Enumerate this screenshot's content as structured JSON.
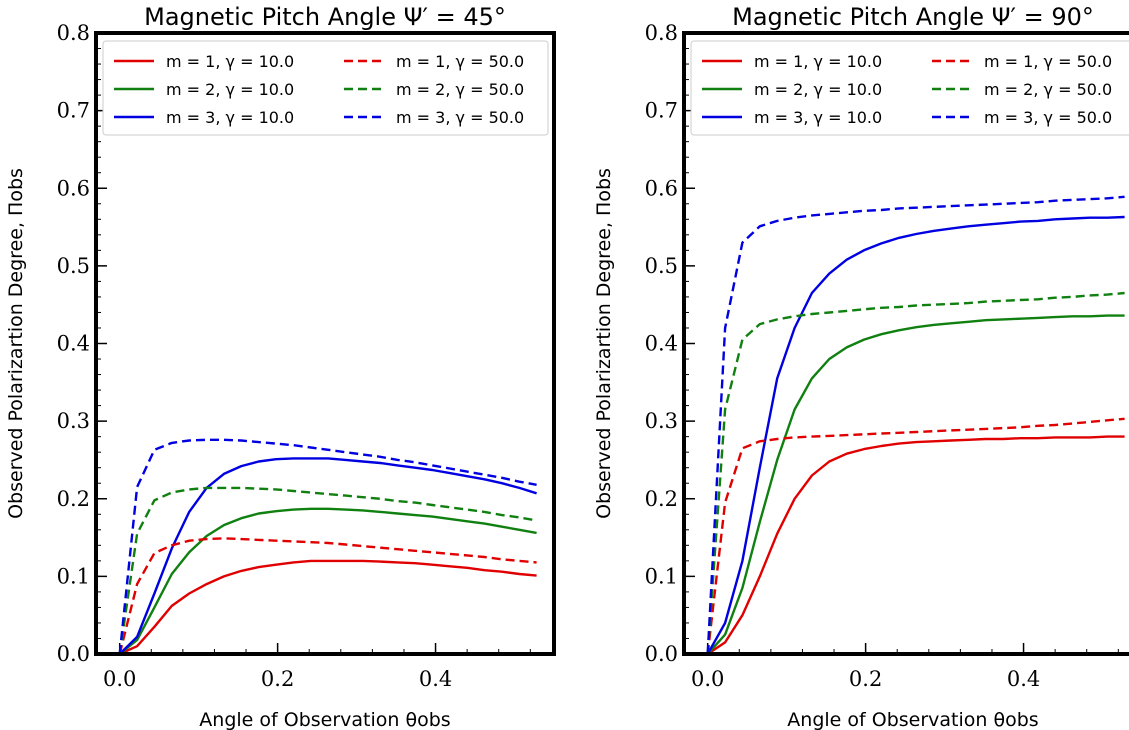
{
  "chart_data": [
    {
      "type": "line",
      "title": "Magnetic Pitch Angle Ψ′ = 45°",
      "xlabel": "Angle of Observation θobs",
      "ylabel": "Observed Polarizartion Degree, Πobs",
      "xlim": [
        -0.03,
        0.55
      ],
      "ylim": [
        0.0,
        0.8
      ],
      "xticks": [
        0.0,
        0.2,
        0.4
      ],
      "xtick_labels": [
        "0.0",
        "0.2",
        "0.4"
      ],
      "yticks": [
        0.0,
        0.1,
        0.2,
        0.3,
        0.4,
        0.5,
        0.6,
        0.7,
        0.8
      ],
      "ytick_labels": [
        "0.0",
        "0.1",
        "0.2",
        "0.3",
        "0.4",
        "0.5",
        "0.6",
        "0.7",
        "0.8"
      ],
      "legend_position": "top",
      "series": [
        {
          "name": "m = 1, γ = 10.0",
          "color": "#e00000",
          "dash": "solid",
          "x": [
            0.0,
            0.022,
            0.044,
            0.066,
            0.088,
            0.11,
            0.132,
            0.154,
            0.176,
            0.198,
            0.22,
            0.242,
            0.264,
            0.286,
            0.308,
            0.33,
            0.352,
            0.374,
            0.396,
            0.418,
            0.44,
            0.462,
            0.484,
            0.506,
            0.528
          ],
          "y": [
            0.0,
            0.01,
            0.035,
            0.062,
            0.078,
            0.09,
            0.1,
            0.107,
            0.112,
            0.115,
            0.118,
            0.12,
            0.12,
            0.12,
            0.12,
            0.119,
            0.118,
            0.117,
            0.115,
            0.113,
            0.111,
            0.108,
            0.106,
            0.103,
            0.101
          ]
        },
        {
          "name": "m = 2, γ = 10.0",
          "color": "#108010",
          "dash": "solid",
          "x": [
            0.0,
            0.022,
            0.044,
            0.066,
            0.088,
            0.11,
            0.132,
            0.154,
            0.176,
            0.198,
            0.22,
            0.242,
            0.264,
            0.286,
            0.308,
            0.33,
            0.352,
            0.374,
            0.396,
            0.418,
            0.44,
            0.462,
            0.484,
            0.506,
            0.528
          ],
          "y": [
            0.0,
            0.018,
            0.06,
            0.103,
            0.131,
            0.152,
            0.166,
            0.175,
            0.181,
            0.184,
            0.186,
            0.187,
            0.187,
            0.186,
            0.185,
            0.183,
            0.181,
            0.179,
            0.177,
            0.174,
            0.171,
            0.168,
            0.164,
            0.16,
            0.156
          ]
        },
        {
          "name": "m = 3, γ = 10.0",
          "color": "#0000e0",
          "dash": "solid",
          "x": [
            0.0,
            0.022,
            0.044,
            0.066,
            0.088,
            0.11,
            0.132,
            0.154,
            0.176,
            0.198,
            0.22,
            0.242,
            0.264,
            0.286,
            0.308,
            0.33,
            0.352,
            0.374,
            0.396,
            0.418,
            0.44,
            0.462,
            0.484,
            0.506,
            0.528
          ],
          "y": [
            0.0,
            0.022,
            0.078,
            0.136,
            0.183,
            0.214,
            0.232,
            0.242,
            0.248,
            0.251,
            0.252,
            0.252,
            0.252,
            0.25,
            0.248,
            0.246,
            0.243,
            0.24,
            0.237,
            0.233,
            0.229,
            0.225,
            0.22,
            0.214,
            0.207
          ]
        },
        {
          "name": "m = 1, γ = 50.0",
          "color": "#e00000",
          "dash": "dashed",
          "x": [
            0.0,
            0.022,
            0.044,
            0.066,
            0.088,
            0.11,
            0.132,
            0.154,
            0.176,
            0.198,
            0.22,
            0.242,
            0.264,
            0.286,
            0.308,
            0.33,
            0.352,
            0.374,
            0.396,
            0.418,
            0.44,
            0.462,
            0.484,
            0.506,
            0.528
          ],
          "y": [
            0.0,
            0.09,
            0.13,
            0.14,
            0.146,
            0.148,
            0.149,
            0.148,
            0.147,
            0.146,
            0.145,
            0.144,
            0.143,
            0.141,
            0.139,
            0.137,
            0.135,
            0.133,
            0.131,
            0.129,
            0.127,
            0.125,
            0.122,
            0.12,
            0.118
          ]
        },
        {
          "name": "m = 2, γ = 50.0",
          "color": "#108010",
          "dash": "dashed",
          "x": [
            0.0,
            0.022,
            0.044,
            0.066,
            0.088,
            0.11,
            0.132,
            0.154,
            0.176,
            0.198,
            0.22,
            0.242,
            0.264,
            0.286,
            0.308,
            0.33,
            0.352,
            0.374,
            0.396,
            0.418,
            0.44,
            0.462,
            0.484,
            0.506,
            0.528
          ],
          "y": [
            0.0,
            0.155,
            0.198,
            0.208,
            0.212,
            0.214,
            0.214,
            0.214,
            0.213,
            0.212,
            0.21,
            0.208,
            0.206,
            0.204,
            0.202,
            0.2,
            0.197,
            0.195,
            0.192,
            0.189,
            0.186,
            0.183,
            0.179,
            0.176,
            0.172
          ]
        },
        {
          "name": "m = 3, γ = 50.0",
          "color": "#0000e0",
          "dash": "dashed",
          "x": [
            0.0,
            0.022,
            0.044,
            0.066,
            0.088,
            0.11,
            0.132,
            0.154,
            0.176,
            0.198,
            0.22,
            0.242,
            0.264,
            0.286,
            0.308,
            0.33,
            0.352,
            0.374,
            0.396,
            0.418,
            0.44,
            0.462,
            0.484,
            0.506,
            0.528
          ],
          "y": [
            0.0,
            0.215,
            0.263,
            0.272,
            0.275,
            0.276,
            0.276,
            0.275,
            0.273,
            0.271,
            0.269,
            0.266,
            0.263,
            0.26,
            0.257,
            0.254,
            0.25,
            0.247,
            0.243,
            0.239,
            0.235,
            0.231,
            0.227,
            0.222,
            0.218
          ]
        }
      ]
    },
    {
      "type": "line",
      "title": "Magnetic Pitch Angle Ψ′ = 90°",
      "xlabel": "Angle of Observation θobs",
      "ylabel": "Observed Polarizartion Degree, Πobs",
      "xlim": [
        -0.03,
        0.55
      ],
      "ylim": [
        0.0,
        0.8
      ],
      "xticks": [
        0.0,
        0.2,
        0.4
      ],
      "xtick_labels": [
        "0.0",
        "0.2",
        "0.4"
      ],
      "yticks": [
        0.0,
        0.1,
        0.2,
        0.3,
        0.4,
        0.5,
        0.6,
        0.7,
        0.8
      ],
      "ytick_labels": [
        "0.0",
        "0.1",
        "0.2",
        "0.3",
        "0.4",
        "0.5",
        "0.6",
        "0.7",
        "0.8"
      ],
      "legend_position": "top",
      "series": [
        {
          "name": "m = 1, γ = 10.0",
          "color": "#e00000",
          "dash": "solid",
          "x": [
            0.0,
            0.022,
            0.044,
            0.066,
            0.088,
            0.11,
            0.132,
            0.154,
            0.176,
            0.198,
            0.22,
            0.242,
            0.264,
            0.286,
            0.308,
            0.33,
            0.352,
            0.374,
            0.396,
            0.418,
            0.44,
            0.462,
            0.484,
            0.506,
            0.528
          ],
          "y": [
            0.0,
            0.015,
            0.05,
            0.1,
            0.155,
            0.2,
            0.23,
            0.248,
            0.258,
            0.264,
            0.268,
            0.271,
            0.273,
            0.274,
            0.275,
            0.276,
            0.277,
            0.277,
            0.278,
            0.278,
            0.279,
            0.279,
            0.279,
            0.28,
            0.28
          ]
        },
        {
          "name": "m = 2, γ = 10.0",
          "color": "#108010",
          "dash": "solid",
          "x": [
            0.0,
            0.022,
            0.044,
            0.066,
            0.088,
            0.11,
            0.132,
            0.154,
            0.176,
            0.198,
            0.22,
            0.242,
            0.264,
            0.286,
            0.308,
            0.33,
            0.352,
            0.374,
            0.396,
            0.418,
            0.44,
            0.462,
            0.484,
            0.506,
            0.528
          ],
          "y": [
            0.0,
            0.025,
            0.085,
            0.17,
            0.25,
            0.315,
            0.355,
            0.38,
            0.395,
            0.405,
            0.412,
            0.417,
            0.421,
            0.424,
            0.426,
            0.428,
            0.43,
            0.431,
            0.432,
            0.433,
            0.434,
            0.435,
            0.435,
            0.436,
            0.436
          ]
        },
        {
          "name": "m = 3, γ = 10.0",
          "color": "#0000e0",
          "dash": "solid",
          "x": [
            0.0,
            0.022,
            0.044,
            0.066,
            0.088,
            0.11,
            0.132,
            0.154,
            0.176,
            0.198,
            0.22,
            0.242,
            0.264,
            0.286,
            0.308,
            0.33,
            0.352,
            0.374,
            0.396,
            0.418,
            0.44,
            0.462,
            0.484,
            0.506,
            0.528
          ],
          "y": [
            0.0,
            0.04,
            0.12,
            0.24,
            0.355,
            0.42,
            0.465,
            0.49,
            0.508,
            0.52,
            0.529,
            0.536,
            0.541,
            0.545,
            0.548,
            0.551,
            0.553,
            0.555,
            0.557,
            0.558,
            0.56,
            0.561,
            0.562,
            0.562,
            0.563
          ]
        },
        {
          "name": "m = 1, γ = 50.0",
          "color": "#e00000",
          "dash": "dashed",
          "x": [
            0.0,
            0.022,
            0.044,
            0.066,
            0.088,
            0.11,
            0.132,
            0.154,
            0.176,
            0.198,
            0.22,
            0.242,
            0.264,
            0.286,
            0.308,
            0.33,
            0.352,
            0.374,
            0.396,
            0.418,
            0.44,
            0.462,
            0.484,
            0.506,
            0.528
          ],
          "y": [
            0.0,
            0.195,
            0.265,
            0.274,
            0.277,
            0.279,
            0.28,
            0.281,
            0.282,
            0.283,
            0.284,
            0.285,
            0.286,
            0.287,
            0.288,
            0.289,
            0.29,
            0.291,
            0.292,
            0.294,
            0.295,
            0.297,
            0.299,
            0.301,
            0.303
          ]
        },
        {
          "name": "m = 2, γ = 50.0",
          "color": "#108010",
          "dash": "dashed",
          "x": [
            0.0,
            0.022,
            0.044,
            0.066,
            0.088,
            0.11,
            0.132,
            0.154,
            0.176,
            0.198,
            0.22,
            0.242,
            0.264,
            0.286,
            0.308,
            0.33,
            0.352,
            0.374,
            0.396,
            0.418,
            0.44,
            0.462,
            0.484,
            0.506,
            0.528
          ],
          "y": [
            0.0,
            0.315,
            0.405,
            0.425,
            0.431,
            0.435,
            0.438,
            0.44,
            0.442,
            0.444,
            0.446,
            0.447,
            0.449,
            0.45,
            0.451,
            0.452,
            0.454,
            0.455,
            0.456,
            0.457,
            0.459,
            0.46,
            0.462,
            0.463,
            0.465
          ]
        },
        {
          "name": "m = 3, γ = 50.0",
          "color": "#0000e0",
          "dash": "dashed",
          "x": [
            0.0,
            0.022,
            0.044,
            0.066,
            0.088,
            0.11,
            0.132,
            0.154,
            0.176,
            0.198,
            0.22,
            0.242,
            0.264,
            0.286,
            0.308,
            0.33,
            0.352,
            0.374,
            0.396,
            0.418,
            0.44,
            0.462,
            0.484,
            0.506,
            0.528
          ],
          "y": [
            0.0,
            0.42,
            0.53,
            0.551,
            0.558,
            0.562,
            0.565,
            0.567,
            0.569,
            0.571,
            0.572,
            0.574,
            0.575,
            0.576,
            0.577,
            0.578,
            0.579,
            0.58,
            0.581,
            0.582,
            0.584,
            0.585,
            0.586,
            0.587,
            0.589
          ]
        }
      ]
    }
  ]
}
